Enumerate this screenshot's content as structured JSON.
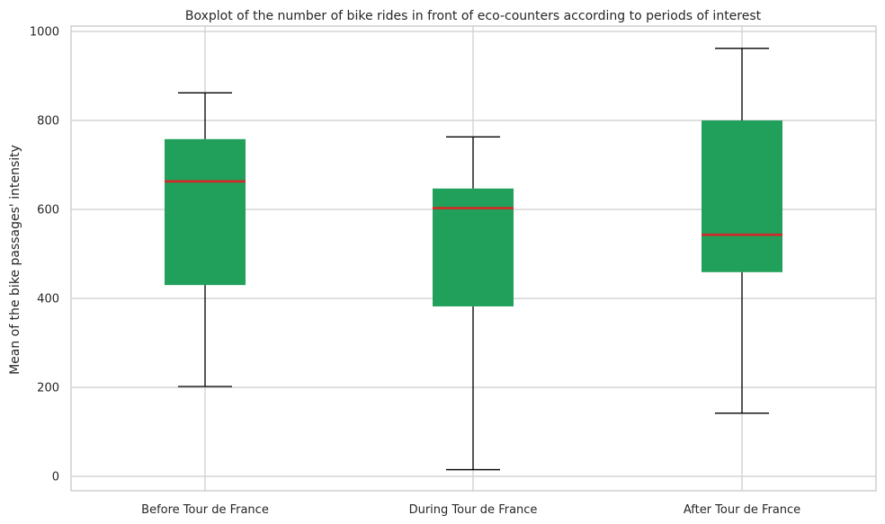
{
  "chart_data": {
    "type": "box",
    "title": "Boxplot of the number of bike rides in front of eco-counters according to periods of interest",
    "xlabel": "",
    "ylabel": "Mean of the bike passages' intensity",
    "ylim": [
      -30,
      1010
    ],
    "yticks": [
      0,
      200,
      400,
      600,
      800,
      1000
    ],
    "grid": true,
    "categories": [
      "Before Tour de France",
      "During Tour de France",
      "After Tour de France"
    ],
    "boxes": [
      {
        "whisker_low": 202,
        "q1": 430,
        "median": 663,
        "q3": 758,
        "whisker_high": 862
      },
      {
        "whisker_low": 15,
        "q1": 382,
        "median": 603,
        "q3": 647,
        "whisker_high": 763
      },
      {
        "whisker_low": 142,
        "q1": 459,
        "median": 543,
        "q3": 800,
        "whisker_high": 962
      }
    ],
    "colors": {
      "box_fill": "#20A05B",
      "median": "#D62728",
      "whisker": "#000000",
      "grid": "#CCCCCC",
      "frame": "#CCCCCC"
    }
  }
}
